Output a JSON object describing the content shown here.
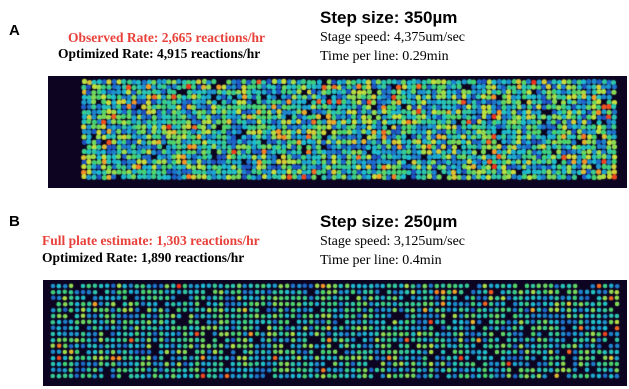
{
  "panel_a": {
    "letter": "A",
    "observed_rate": "Observed Rate: 2,665 reactions/hr",
    "optimized_rate": "Optimized Rate: 4,915 reactions/hr",
    "step_size": "Step size: 350µm",
    "stage_speed": "Stage speed: 4,375um/sec",
    "time_per_line": "Time per line: 0.29min"
  },
  "panel_b": {
    "letter": "B",
    "full_plate_estimate": "Full plate estimate: 1,303 reactions/hr",
    "optimized_rate": "Optimized Rate: 1,890 reactions/hr",
    "step_size": "Step size: 250µm",
    "stage_speed": "Stage speed: 3,125um/sec",
    "time_per_line": "Time per line: 0.4min"
  },
  "colors": {
    "highlight_red": "#e8413a",
    "background_dark": "#0c0420"
  }
}
